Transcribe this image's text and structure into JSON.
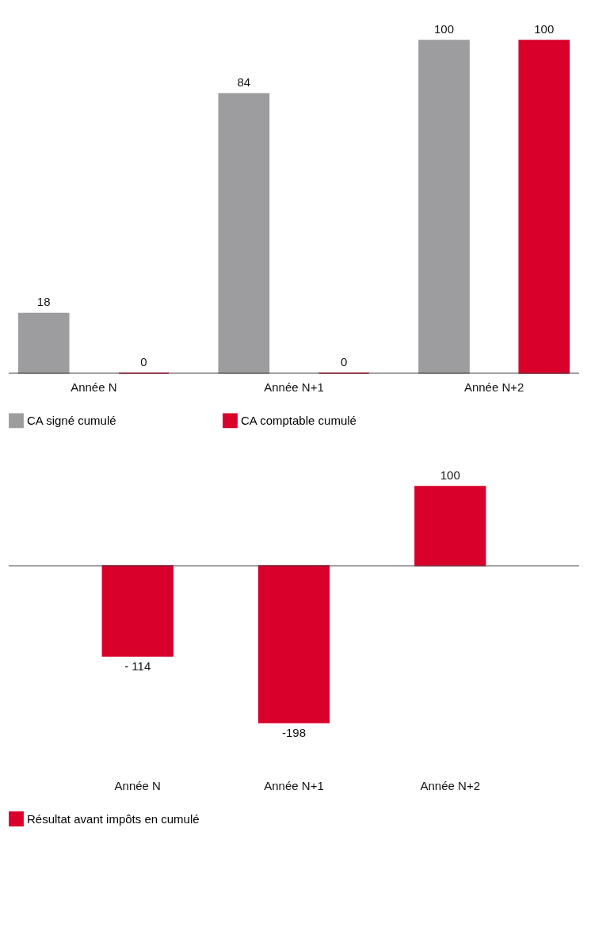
{
  "chart_data": [
    {
      "type": "bar",
      "categories": [
        "Année N",
        "Année N+1",
        "Année N+2"
      ],
      "series": [
        {
          "name": "CA signé cumulé",
          "color": "#9d9d9f",
          "values": [
            18,
            84,
            100
          ]
        },
        {
          "name": "CA comptable cumulé",
          "color": "#d9002b",
          "values": [
            0,
            0,
            100
          ]
        }
      ],
      "data_labels": true,
      "legend": "bottom"
    },
    {
      "type": "bar",
      "categories": [
        "Année N",
        "Année N+1",
        "Année N+2"
      ],
      "series": [
        {
          "name": "Résultat avant impôts en cumulé",
          "color": "#d9002b",
          "values": [
            -114,
            -198,
            100
          ],
          "value_labels": [
            "- 114",
            "-198",
            "100"
          ]
        }
      ],
      "legend": "bottom"
    }
  ]
}
